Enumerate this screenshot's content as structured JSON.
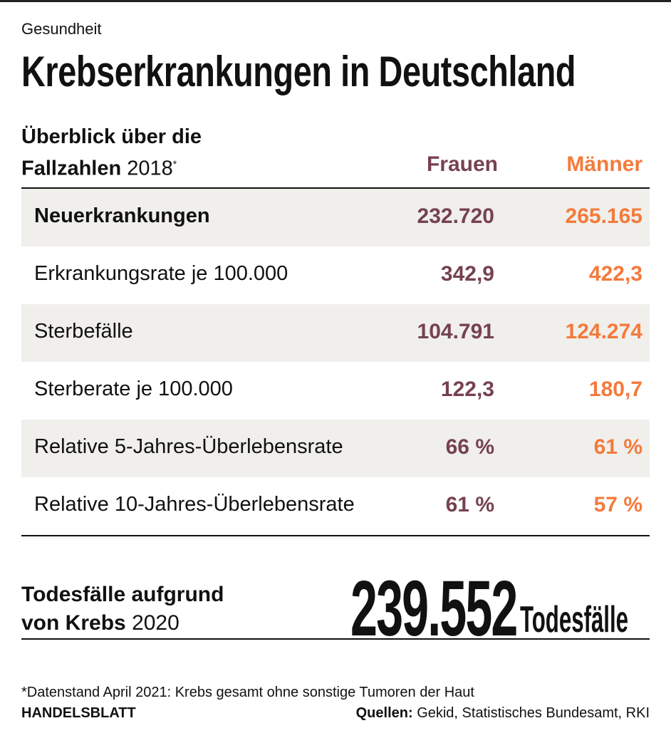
{
  "kicker": "Gesundheit",
  "title": "Krebserkrankungen in Deutschland",
  "subtitle": {
    "bold": "Überblick über die Fallzahlen",
    "year": "2018",
    "mark": "*"
  },
  "colors": {
    "frauen": "#76424f",
    "maenner": "#f47a3c",
    "row_shade": "#f0efeb"
  },
  "chart_data": {
    "type": "table",
    "columns": [
      "Frauen",
      "Männer"
    ],
    "rows": [
      {
        "label": "Neuerkrankungen",
        "frauen": "232.720",
        "maenner": "265.165",
        "bold": true
      },
      {
        "label": "Erkrankungsrate je 100.000",
        "frauen": "342,9",
        "maenner": "422,3"
      },
      {
        "label": "Sterbefälle",
        "frauen": "104.791",
        "maenner": "124.274"
      },
      {
        "label": "Sterberate je 100.000",
        "frauen": "122,3",
        "maenner": "180,7"
      },
      {
        "label": "Relative 5-Jahres-Überlebensrate",
        "frauen": "66 %",
        "maenner": "61 %"
      },
      {
        "label": "Relative 10-Jahres-Überlebensrate",
        "frauen": "61 %",
        "maenner": "57 %"
      }
    ]
  },
  "deaths": {
    "label_bold": "Todesfälle aufgrund von Krebs",
    "year": "2020",
    "value": "239.552",
    "unit": "Todesfälle"
  },
  "footnote": "*Datenstand April 2021: Krebs gesamt ohne sonstige Tumoren der Haut",
  "brand": "HANDELSBLATT",
  "sources": {
    "label": "Quellen:",
    "text": "Gekid, Statistisches Bundesamt, RKI"
  }
}
